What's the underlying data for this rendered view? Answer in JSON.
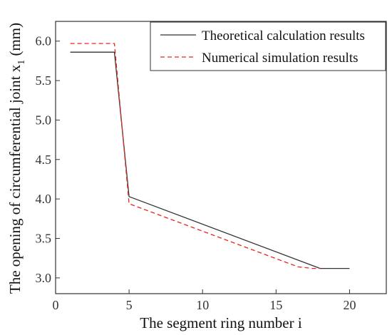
{
  "chart_data": {
    "type": "line",
    "xlabel": "The segment ring number i",
    "ylabel_main": "The opening of circumferential joint x",
    "ylabel_sub": "1",
    "ylabel_unit": " (mm)",
    "xlim": [
      0,
      22.5
    ],
    "ylim": [
      2.8,
      6.25
    ],
    "xticks": [
      0,
      5,
      10,
      15,
      20
    ],
    "xtick_labels": [
      "0",
      "5",
      "10",
      "15",
      "20"
    ],
    "yticks": [
      3.0,
      3.5,
      4.0,
      4.5,
      5.0,
      5.5,
      6.0
    ],
    "ytick_labels": [
      "3.0",
      "3.5",
      "4.0",
      "4.5",
      "5.0",
      "5.5",
      "6.0"
    ],
    "legend_position": "top-right",
    "series": [
      {
        "name": "Theoretical calculation results",
        "color": "#333333",
        "dash": "solid",
        "x": [
          1,
          4,
          5,
          18,
          20
        ],
        "y": [
          5.86,
          5.86,
          4.03,
          3.12,
          3.12
        ]
      },
      {
        "name": "Numerical simulation results",
        "color": "#e8261d",
        "dash": "dashed",
        "x": [
          1,
          4,
          5,
          16.5,
          17.5,
          18
        ],
        "y": [
          5.97,
          5.97,
          3.94,
          3.14,
          3.12,
          3.12
        ]
      }
    ]
  }
}
